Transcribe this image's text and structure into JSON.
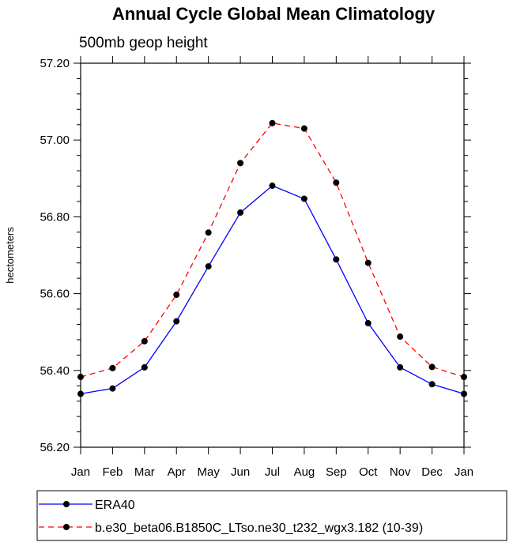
{
  "chart_data": {
    "type": "line",
    "title": "Annual Cycle Global Mean Climatology",
    "subtitle": "500mb geop height",
    "ylabel": "hectometers",
    "xlabel": "",
    "categories": [
      "Jan",
      "Feb",
      "Mar",
      "Apr",
      "May",
      "Jun",
      "Jul",
      "Aug",
      "Sep",
      "Oct",
      "Nov",
      "Dec",
      "Jan"
    ],
    "ylim": [
      56.2,
      57.2
    ],
    "yticks": [
      "56.20",
      "56.40",
      "56.60",
      "56.80",
      "57.00",
      "57.20"
    ],
    "grid": false,
    "legend_position": "bottom",
    "series": [
      {
        "name": "ERA40",
        "color": "#0000ff",
        "style": "solid",
        "values": [
          56.339,
          56.353,
          56.408,
          56.528,
          56.671,
          56.811,
          56.881,
          56.847,
          56.689,
          56.523,
          56.408,
          56.364,
          56.339
        ]
      },
      {
        "name": "b.e30_beta06.B1850C_LTso.ne30_t232_wgx3.182 (10-39)",
        "color": "#ff0000",
        "style": "dashed",
        "values": [
          56.383,
          56.406,
          56.476,
          56.597,
          56.759,
          56.94,
          57.044,
          57.03,
          56.889,
          56.68,
          56.488,
          56.409,
          56.383
        ]
      }
    ]
  }
}
